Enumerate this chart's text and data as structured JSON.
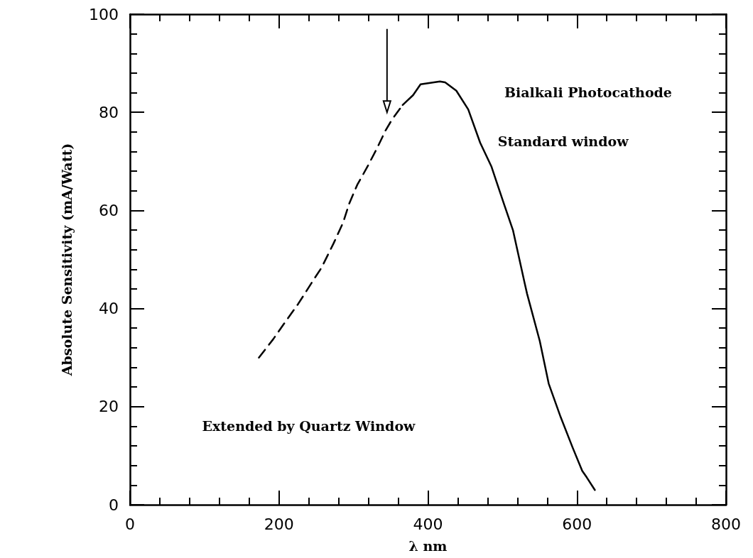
{
  "chart_data": {
    "type": "line",
    "xlabel": "λ nm",
    "ylabel": "Absolute Sensitivity (mA/Watt)",
    "xlim": [
      0,
      800
    ],
    "xticks": [
      0,
      200,
      400,
      600,
      800
    ],
    "ylim": [
      0,
      100
    ],
    "yticks": [
      0,
      20,
      40,
      60,
      80,
      100
    ],
    "grid": false,
    "marker": "none",
    "annotations": [
      "Bialkali Photocathode",
      "Standard window",
      "Extended by Quartz Window"
    ],
    "series": [
      {
        "color": "#000000",
        "line_style": "dashed",
        "x": [
          173,
          192,
          209,
          226,
          247,
          257,
          273,
          286,
          294,
          305,
          319,
          332,
          343,
          352,
          366
        ],
        "values": [
          30,
          33.7,
          37.4,
          41,
          46,
          48.3,
          53.2,
          57.5,
          61.3,
          65.2,
          69,
          72.8,
          76.3,
          78.6,
          81.5
        ]
      },
      {
        "color": "#000000",
        "line_style": "solid",
        "x": [
          366,
          380,
          390,
          416,
          423,
          438,
          454,
          470,
          485,
          502,
          514,
          530,
          533,
          550,
          562,
          578,
          594,
          607,
          613,
          624
        ],
        "values": [
          81.5,
          83.5,
          85.7,
          86.3,
          86.1,
          84.4,
          80.6,
          73.8,
          69,
          61.3,
          56,
          45,
          43,
          33.4,
          24.7,
          17.9,
          11.7,
          6.9,
          5.6,
          3
        ]
      }
    ]
  }
}
